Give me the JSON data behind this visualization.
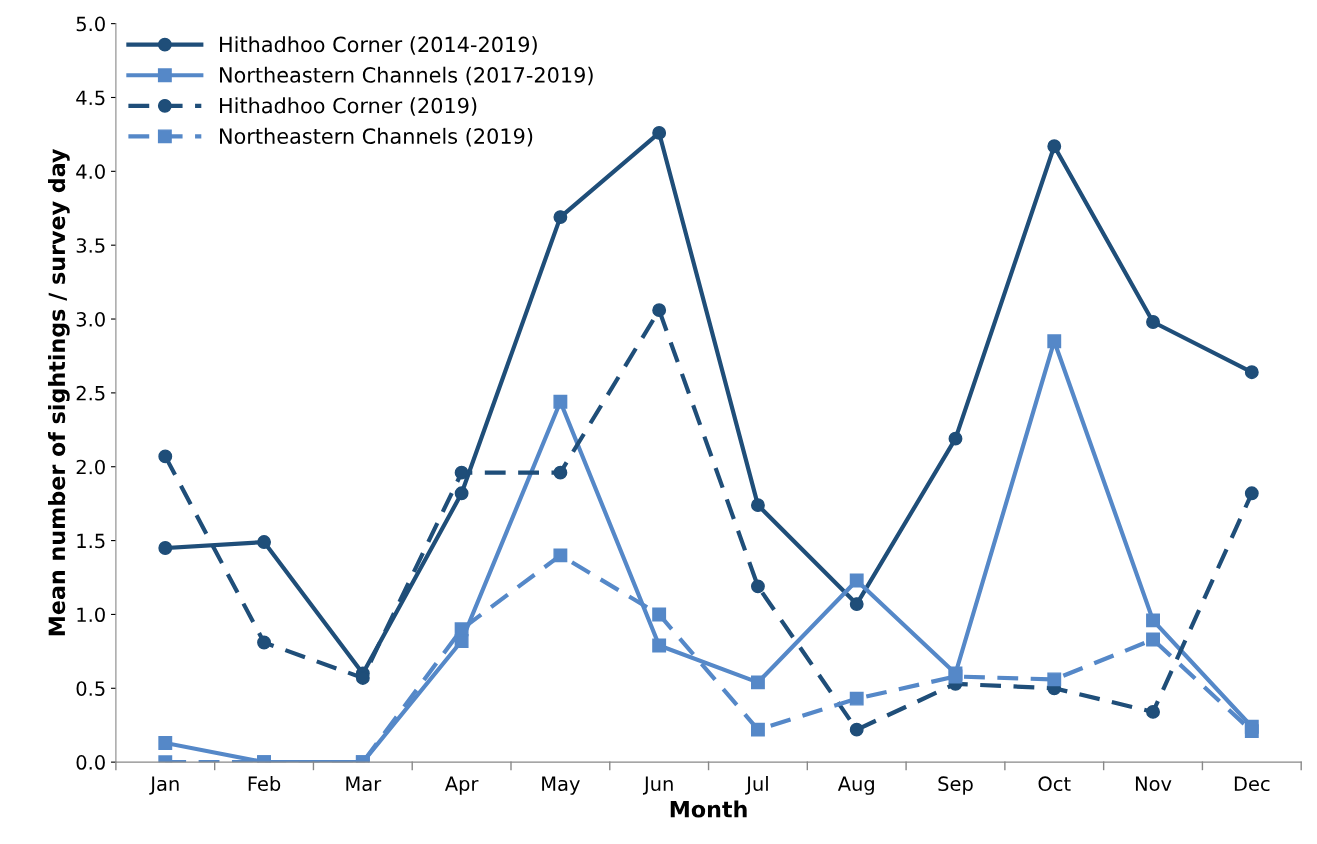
{
  "chart_data": {
    "type": "line",
    "xlabel": "Month",
    "ylabel": "Mean number of sightings / survey day",
    "categories": [
      "Jan",
      "Feb",
      "Mar",
      "Apr",
      "May",
      "Jun",
      "Jul",
      "Aug",
      "Sep",
      "Oct",
      "Nov",
      "Dec"
    ],
    "ylim": [
      0,
      5
    ],
    "yticks": [
      {
        "value": 0,
        "label": "0.0"
      },
      {
        "value": 0.5,
        "label": "0.5"
      },
      {
        "value": 1,
        "label": "1.0"
      },
      {
        "value": 1.5,
        "label": "1.5"
      },
      {
        "value": 2,
        "label": "2.0"
      },
      {
        "value": 2.5,
        "label": "2.5"
      },
      {
        "value": 3,
        "label": "3.0"
      },
      {
        "value": 3.5,
        "label": "3.5"
      },
      {
        "value": 4,
        "label": "4.0"
      },
      {
        "value": 4.5,
        "label": "4.5"
      },
      {
        "value": 5,
        "label": "5.0"
      }
    ],
    "grid": false,
    "legend": "top left",
    "series": [
      {
        "name": "Hithadhoo Corner (2014-2019)",
        "color": "#1f4e79",
        "marker": "circle",
        "line_style": "solid",
        "values": [
          1.45,
          1.49,
          0.6,
          1.82,
          3.69,
          4.26,
          1.74,
          1.07,
          2.19,
          4.17,
          2.98,
          2.64
        ]
      },
      {
        "name": "Northeastern Channels (2017-2019)",
        "color": "#5588c8",
        "marker": "square",
        "line_style": "solid",
        "values": [
          0.13,
          0,
          0,
          0.82,
          2.44,
          0.79,
          0.54,
          1.23,
          0.6,
          2.85,
          0.96,
          0.24
        ]
      },
      {
        "name": "Hithadhoo Corner (2019)",
        "color": "#1f4e79",
        "marker": "circle",
        "line_style": "dashed",
        "values": [
          2.07,
          0.81,
          0.57,
          1.96,
          1.96,
          3.06,
          1.19,
          0.22,
          0.53,
          0.5,
          0.34,
          1.82
        ]
      },
      {
        "name": "Northeastern Channels (2019)",
        "color": "#5588c8",
        "marker": "square",
        "line_style": "dashed",
        "values": [
          0,
          0,
          0,
          0.9,
          1.4,
          1.0,
          0.22,
          0.43,
          0.58,
          0.56,
          0.83,
          0.21
        ]
      }
    ]
  }
}
